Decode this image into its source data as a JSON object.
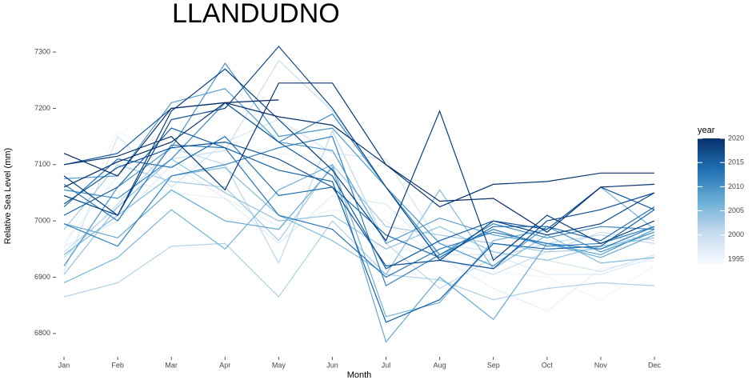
{
  "chart_data": {
    "type": "line",
    "title": "LLANDUDNO",
    "x_label": "Month",
    "y_label": "Relative Sea Level (mm)",
    "categories": [
      "Jan",
      "Feb",
      "Mar",
      "Apr",
      "May",
      "Jun",
      "Jul",
      "Aug",
      "Sep",
      "Oct",
      "Nov",
      "Dec"
    ],
    "ylim": [
      6760,
      7320
    ],
    "yticks": [
      6800,
      6900,
      7000,
      7100,
      7200,
      7300
    ],
    "grid": false,
    "colorbar": {
      "title": "year",
      "lim": [
        1994,
        2020
      ],
      "ticks": [
        1995,
        2000,
        2005,
        2010,
        2015,
        2020
      ],
      "colors": [
        "#f7fbff",
        "#c6dbef",
        "#6baed6",
        "#2171b5",
        "#08306b"
      ]
    },
    "series": [
      {
        "color": "#eef5fc",
        "values": [
          6950,
          7160,
          7105,
          7090,
          7120,
          7110,
          6940,
          6960,
          6910,
          6900,
          6860,
          6920
        ]
      },
      {
        "color": "#e6f0fa",
        "values": [
          6960,
          7080,
          7050,
          7040,
          6990,
          7020,
          7000,
          6935,
          6880,
          6840,
          6915,
          6930
        ]
      },
      {
        "color": "#deebf7",
        "values": [
          6955,
          7000,
          7100,
          7040,
          6960,
          7045,
          7030,
          6940,
          6940,
          6905,
          6905,
          6935
        ]
      },
      {
        "color": "#d3e4f3",
        "values": [
          6910,
          7150,
          7060,
          7140,
          7180,
          7120,
          7110,
          6960,
          6945,
          6930,
          6910,
          6940
        ]
      },
      {
        "color": "#c8ddf0",
        "values": [
          6945,
          7025,
          7110,
          7125,
          7285,
          7195,
          7060,
          6935,
          6905,
          6945,
          6980,
          6965
        ]
      },
      {
        "color": "#bdd7ec",
        "values": [
          6935,
          7030,
          7130,
          7100,
          6925,
          7160,
          6960,
          6880,
          6935,
          6960,
          6975,
          6960
        ]
      },
      {
        "color": "#afd1e7",
        "values": [
          6865,
          6890,
          6955,
          6960,
          6865,
          7000,
          6905,
          6895,
          6860,
          6880,
          6890,
          6885
        ]
      },
      {
        "color": "#a0cae2",
        "values": [
          6985,
          7100,
          7070,
          7060,
          6965,
          7100,
          6990,
          6975,
          6960,
          6945,
          6950,
          6980
        ]
      },
      {
        "color": "#91c3de",
        "values": [
          6905,
          7025,
          7110,
          7050,
          7000,
          7010,
          6950,
          6990,
          6945,
          6930,
          6955,
          6970
        ]
      },
      {
        "color": "#82bbdb",
        "values": [
          6940,
          7010,
          7080,
          7095,
          7010,
          6965,
          6905,
          7055,
          6915,
          6975,
          6925,
          6935
        ]
      },
      {
        "color": "#72b2d8",
        "values": [
          6890,
          6935,
          7020,
          6950,
          7055,
          7100,
          6830,
          6855,
          6965,
          6985,
          7060,
          6985
        ]
      },
      {
        "color": "#63a8d3",
        "values": [
          6995,
          6970,
          7055,
          7000,
          6985,
          7095,
          6785,
          6900,
          6825,
          6960,
          6935,
          6975
        ]
      },
      {
        "color": "#559fce",
        "values": [
          7075,
          7080,
          7210,
          7235,
          7140,
          7125,
          6960,
          7005,
          6975,
          6960,
          6940,
          6985
        ]
      },
      {
        "color": "#4896c8",
        "values": [
          6920,
          7060,
          7130,
          7280,
          7150,
          7165,
          7060,
          6960,
          6920,
          6990,
          6945,
          6980
        ]
      },
      {
        "color": "#3b8bc2",
        "values": [
          7055,
          7040,
          7110,
          7210,
          7140,
          7190,
          7060,
          6940,
          6995,
          6970,
          6990,
          6985
        ]
      },
      {
        "color": "#3080bd",
        "values": [
          6995,
          6955,
          7080,
          7100,
          7130,
          7150,
          6885,
          6940,
          6985,
          6955,
          6960,
          6990
        ]
      },
      {
        "color": "#2676b8",
        "values": [
          7065,
          7000,
          7135,
          7130,
          7010,
          6985,
          6900,
          6950,
          6980,
          6960,
          6950,
          6990
        ]
      },
      {
        "color": "#1d6cb1",
        "values": [
          7025,
          7110,
          7095,
          7150,
          7045,
          7060,
          6975,
          6935,
          6990,
          6990,
          6965,
          7025
        ]
      },
      {
        "color": "#1562a9",
        "values": [
          7010,
          7060,
          7165,
          7130,
          7090,
          7070,
          6820,
          6860,
          6960,
          6950,
          6955,
          7020
        ]
      },
      {
        "color": "#0f59a2",
        "values": [
          7100,
          7120,
          7200,
          7210,
          7140,
          7080,
          6915,
          6965,
          7000,
          6985,
          7060,
          7020
        ]
      },
      {
        "color": "#0b4f97",
        "values": [
          7030,
          7095,
          7130,
          7140,
          7110,
          7060,
          6920,
          6930,
          6915,
          7000,
          7020,
          7050
        ]
      },
      {
        "color": "#08468b",
        "values": [
          7045,
          7010,
          7180,
          7200,
          7310,
          7200,
          7060,
          6930,
          7000,
          6975,
          6995,
          7050
        ]
      },
      {
        "color": "#083e7e",
        "values": [
          7080,
          7010,
          7195,
          7270,
          7180,
          7090,
          6965,
          7195,
          6930,
          7010,
          6960,
          7000
        ]
      },
      {
        "color": "#083674",
        "values": [
          7100,
          7115,
          7150,
          7055,
          7245,
          7245,
          7100,
          7025,
          7065,
          7070,
          7085,
          7085
        ]
      },
      {
        "color": "#08306b",
        "values": [
          7060,
          7105,
          7140,
          7210,
          7185,
          7170,
          7100,
          7035,
          7040,
          6980,
          7060,
          7065
        ]
      },
      {
        "color": "#072a60",
        "values": [
          7120,
          7080,
          7200,
          7210,
          7215,
          null,
          null,
          null,
          null,
          null,
          null,
          null
        ]
      }
    ]
  }
}
